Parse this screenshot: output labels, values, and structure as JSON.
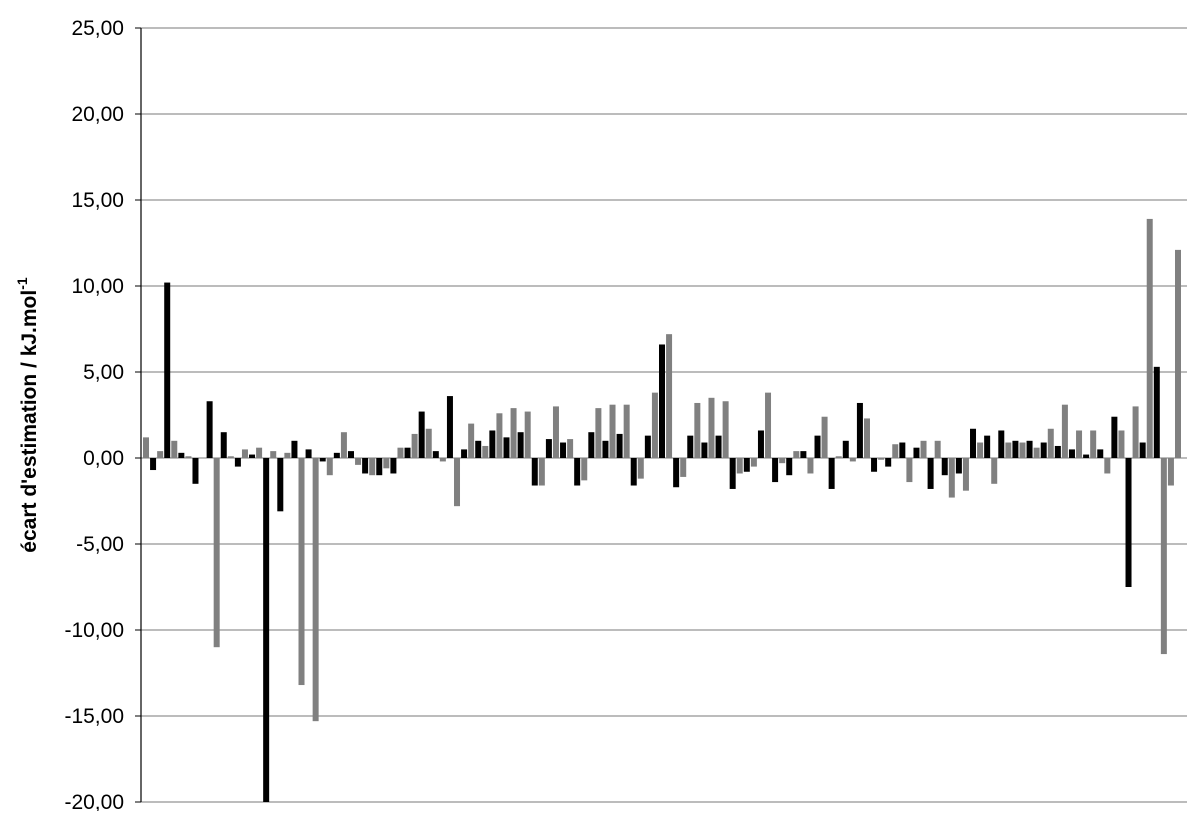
{
  "chart_data": {
    "type": "bar",
    "ylabel_main": "écart d'estimation / kJ.mol",
    "ylabel_sup": "-1",
    "ylim": [
      -20,
      25
    ],
    "yticks": [
      25,
      20,
      15,
      10,
      5,
      0,
      -5,
      -10,
      -15,
      -20
    ],
    "ytick_labels": [
      "25,00",
      "20,00",
      "15,00",
      "10,00",
      "5,00",
      "0,00",
      "-5,00",
      "-10,00",
      "-15,00",
      "-20,00"
    ],
    "grid": true,
    "legend": "none",
    "series": [
      {
        "color": "#808080",
        "values": [
          1.2,
          0.4,
          1.0,
          0.1,
          0.0,
          -11.0,
          0.1,
          0.5,
          0.6,
          0.4,
          0.3,
          -13.2,
          -15.3,
          -1.0,
          1.5,
          -0.4,
          -1.0,
          -0.6,
          0.6,
          1.4,
          1.7,
          -0.2,
          -2.8,
          2.0,
          0.7,
          2.6,
          2.9,
          2.7,
          -1.6,
          3.0,
          1.1,
          -1.3,
          2.9,
          3.1,
          3.1,
          -1.2,
          3.8,
          7.2,
          -1.1,
          3.2,
          3.5,
          3.3,
          -0.9,
          -0.5,
          3.8,
          -0.3,
          0.4,
          -0.9,
          2.4,
          0.1,
          -0.2,
          2.3,
          -0.1,
          0.8,
          -1.4,
          1.0,
          1.0,
          -2.3,
          -1.9,
          0.9,
          -1.5,
          0.9,
          0.9,
          0.6,
          1.7,
          3.1,
          1.6,
          1.6,
          -0.9,
          1.6,
          3.0,
          13.9,
          -11.4,
          -1.6,
          12.1
        ]
      },
      {
        "color": "#000000",
        "values": [
          -0.7,
          10.2,
          0.3,
          -1.5,
          3.3,
          1.5,
          -0.5,
          0.2,
          -20.0,
          -3.1,
          1.0,
          0.5,
          -0.2,
          0.3,
          0.4,
          -0.9,
          -1.0,
          -0.9,
          0.6,
          2.7,
          0.4,
          3.6,
          0.5,
          1.0,
          1.6,
          1.2,
          1.5,
          -1.6,
          1.1,
          0.9,
          -1.6,
          1.5,
          1.0,
          1.4,
          -1.6,
          1.3,
          6.6,
          -1.7,
          1.3,
          0.9,
          1.3,
          -1.8,
          -0.8,
          1.6,
          -1.4,
          -1.0,
          0.4,
          1.3,
          -1.8,
          1.0,
          3.2,
          -0.8,
          -0.5,
          0.9,
          0.6,
          -1.8,
          -1.0,
          -0.9,
          1.7,
          1.3,
          1.6,
          1.0,
          1.0,
          0.9,
          0.7,
          0.5,
          0.2,
          0.5,
          2.4,
          -7.5,
          0.9,
          5.3
        ]
      }
    ]
  }
}
